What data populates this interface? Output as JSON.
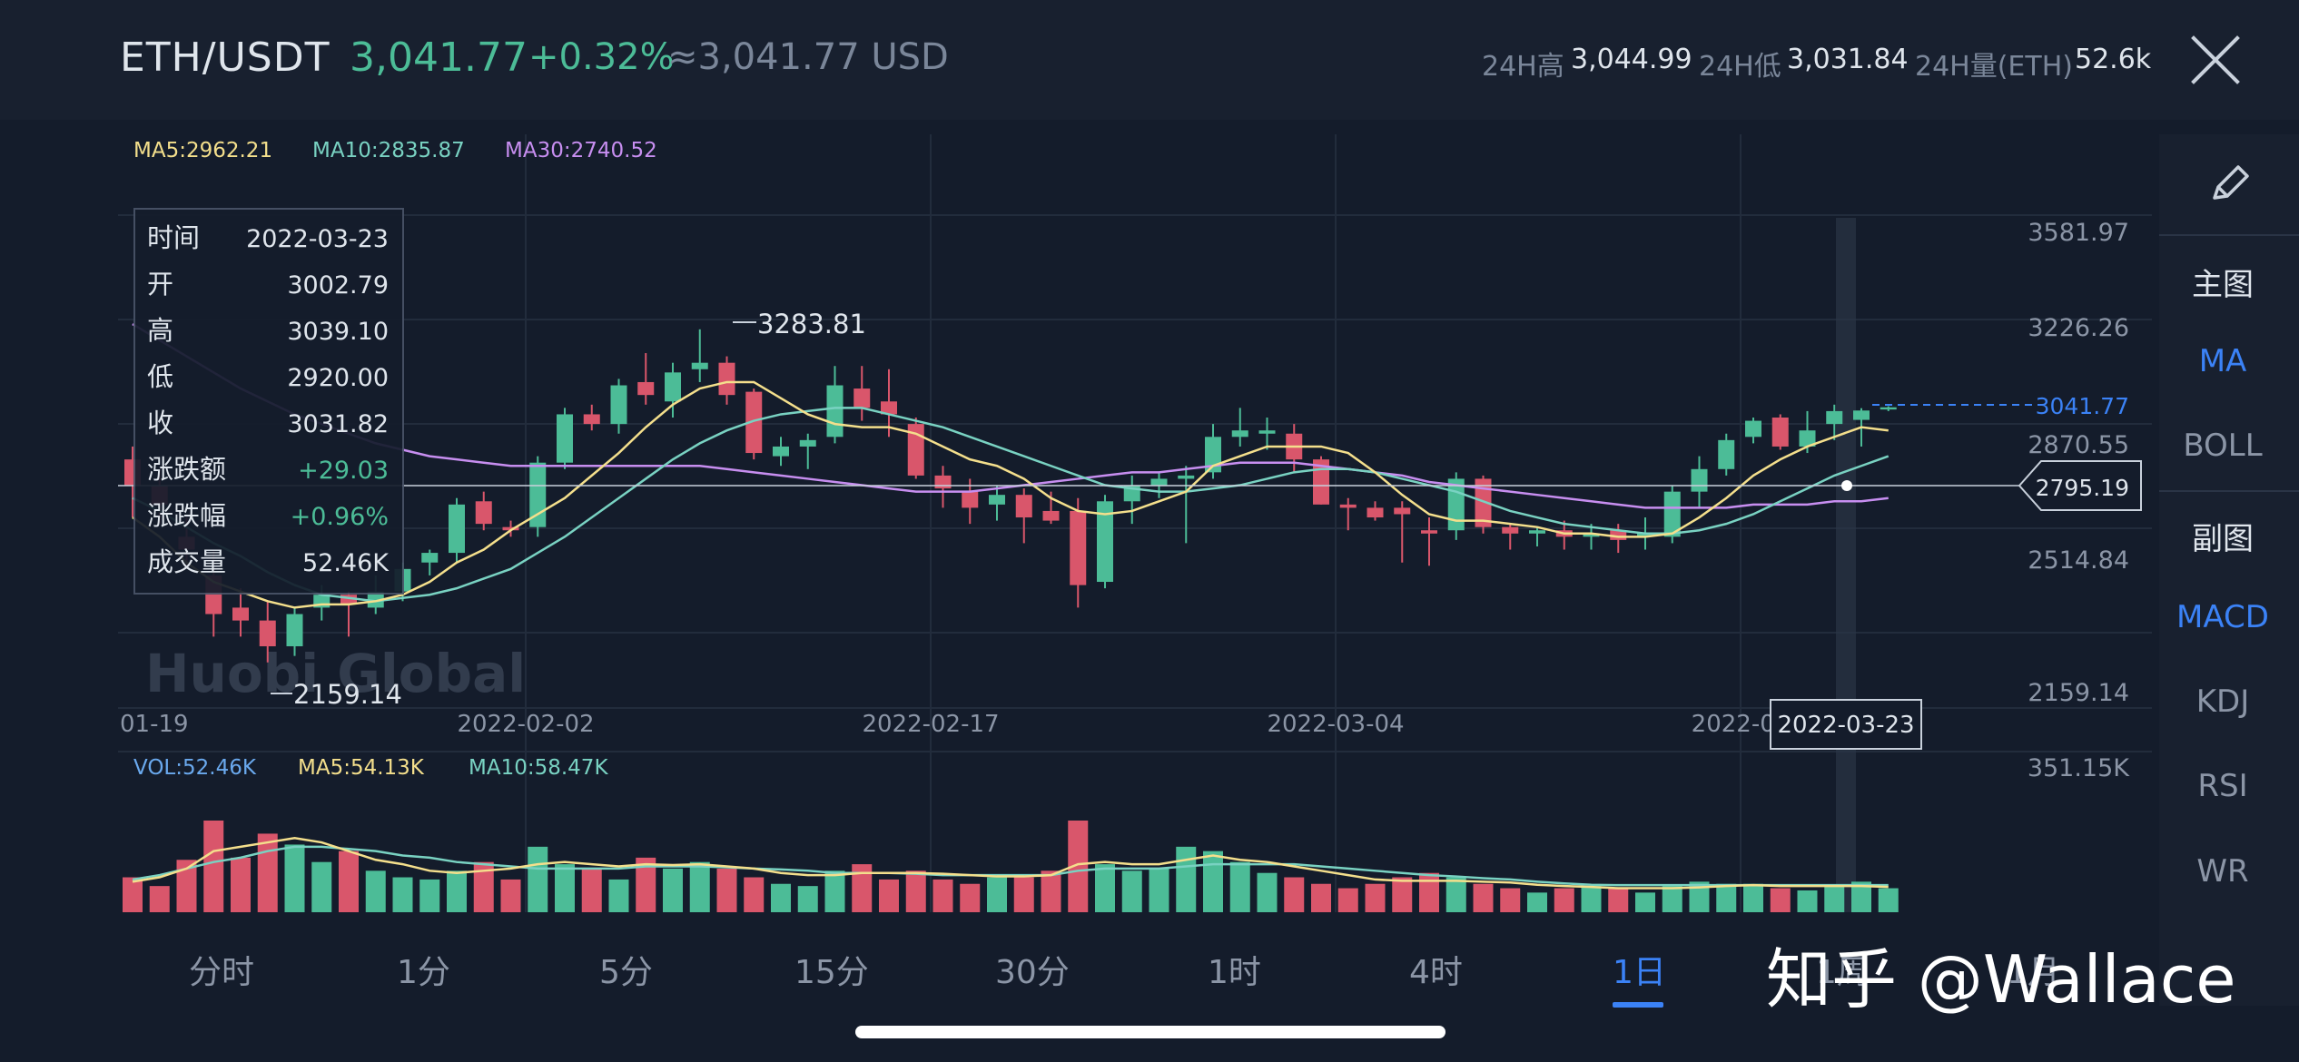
{
  "header": {
    "pair": "ETH/USDT",
    "price": "3,041.77",
    "change": "+0.32%",
    "usd": "≈3,041.77 USD",
    "high_label": "24H高",
    "high_value": "3,044.99",
    "low_label": "24H低",
    "low_value": "3,031.84",
    "vol_label": "24H量(ETH)",
    "vol_value": "52.6k"
  },
  "legend": {
    "ma5": "MA5:2962.21",
    "ma10": "MA10:2835.87",
    "ma30": "MA30:2740.52"
  },
  "y_ticks": [
    "3581.97",
    "3226.26",
    "2870.55",
    "2514.84",
    "2159.14"
  ],
  "last_price_tag": "3041.77",
  "crosshair_price": "2795.19",
  "crosshair_date": "2022-03-23",
  "max_annotation": "3283.81",
  "min_annotation": "2159.14",
  "x_ticks": [
    "01-19",
    "2022-02-02",
    "2022-02-17",
    "2022-03-04",
    "2022-03"
  ],
  "tooltip": {
    "rows": [
      {
        "label": "时间",
        "value": "2022-03-23"
      },
      {
        "label": "开",
        "value": "3002.79"
      },
      {
        "label": "高",
        "value": "3039.10"
      },
      {
        "label": "低",
        "value": "2920.00"
      },
      {
        "label": "收",
        "value": "3031.82"
      },
      {
        "label": "涨跌额",
        "value": "+29.03"
      },
      {
        "label": "涨跌幅",
        "value": "+0.96%"
      },
      {
        "label": "成交量",
        "value": "52.46K"
      }
    ]
  },
  "brand_watermark": "Huobi Global",
  "volume": {
    "vol": "VOL:52.46K",
    "ma5": "MA5:54.13K",
    "ma10": "MA10:58.47K",
    "max_tick": "351.15K"
  },
  "sidebar": {
    "main_label": "主图",
    "ma": "MA",
    "boll": "BOLL",
    "sub_label": "副图",
    "macd": "MACD",
    "kdj": "KDJ",
    "rsi": "RSI",
    "wr": "WR"
  },
  "tabs": [
    "分时",
    "1分",
    "5分",
    "15分",
    "30分",
    "1时",
    "4时",
    "1日",
    "1周",
    "1月"
  ],
  "watermark": "知乎 @Wallace",
  "colors": {
    "up": "#4cbc97",
    "down": "#d9566b",
    "ma5": "#f4df8c",
    "ma10": "#79d2c2",
    "ma30": "#c78ef0",
    "accent": "#3b82f6"
  },
  "chart_data": {
    "type": "candlestick",
    "ylim": [
      2159.14,
      3581.97
    ],
    "candles": [
      {
        "o": 2880,
        "h": 2920,
        "l": 2700,
        "c": 2800
      },
      {
        "o": 2800,
        "h": 2850,
        "l": 2680,
        "c": 2740
      },
      {
        "o": 2640,
        "h": 2700,
        "l": 2540,
        "c": 2600
      },
      {
        "o": 2520,
        "h": 2600,
        "l": 2330,
        "c": 2400
      },
      {
        "o": 2420,
        "h": 2480,
        "l": 2330,
        "c": 2380
      },
      {
        "o": 2380,
        "h": 2440,
        "l": 2250,
        "c": 2300
      },
      {
        "o": 2300,
        "h": 2420,
        "l": 2270,
        "c": 2400
      },
      {
        "o": 2420,
        "h": 2490,
        "l": 2380,
        "c": 2460
      },
      {
        "o": 2460,
        "h": 2470,
        "l": 2330,
        "c": 2430
      },
      {
        "o": 2420,
        "h": 2520,
        "l": 2400,
        "c": 2470
      },
      {
        "o": 2470,
        "h": 2560,
        "l": 2440,
        "c": 2540
      },
      {
        "o": 2560,
        "h": 2600,
        "l": 2520,
        "c": 2590
      },
      {
        "o": 2590,
        "h": 2760,
        "l": 2560,
        "c": 2740
      },
      {
        "o": 2750,
        "h": 2780,
        "l": 2660,
        "c": 2680
      },
      {
        "o": 2670,
        "h": 2690,
        "l": 2640,
        "c": 2660
      },
      {
        "o": 2670,
        "h": 2890,
        "l": 2640,
        "c": 2870
      },
      {
        "o": 2870,
        "h": 3040,
        "l": 2850,
        "c": 3020
      },
      {
        "o": 3020,
        "h": 3050,
        "l": 2970,
        "c": 2990
      },
      {
        "o": 2990,
        "h": 3130,
        "l": 2960,
        "c": 3110
      },
      {
        "o": 3120,
        "h": 3210,
        "l": 3050,
        "c": 3080
      },
      {
        "o": 3060,
        "h": 3180,
        "l": 3010,
        "c": 3150
      },
      {
        "o": 3160,
        "h": 3283.81,
        "l": 3120,
        "c": 3180
      },
      {
        "o": 3180,
        "h": 3200,
        "l": 3050,
        "c": 3080
      },
      {
        "o": 3090,
        "h": 3100,
        "l": 2880,
        "c": 2900
      },
      {
        "o": 2890,
        "h": 2950,
        "l": 2860,
        "c": 2920
      },
      {
        "o": 2920,
        "h": 2960,
        "l": 2850,
        "c": 2940
      },
      {
        "o": 2950,
        "h": 3170,
        "l": 2930,
        "c": 3110
      },
      {
        "o": 3100,
        "h": 3170,
        "l": 3000,
        "c": 3040
      },
      {
        "o": 3060,
        "h": 3160,
        "l": 2950,
        "c": 3020
      },
      {
        "o": 2990,
        "h": 3010,
        "l": 2820,
        "c": 2830
      },
      {
        "o": 2830,
        "h": 2860,
        "l": 2730,
        "c": 2790
      },
      {
        "o": 2780,
        "h": 2820,
        "l": 2680,
        "c": 2730
      },
      {
        "o": 2740,
        "h": 2800,
        "l": 2690,
        "c": 2770
      },
      {
        "o": 2770,
        "h": 2790,
        "l": 2620,
        "c": 2700
      },
      {
        "o": 2720,
        "h": 2780,
        "l": 2680,
        "c": 2690
      },
      {
        "o": 2720,
        "h": 2760,
        "l": 2420,
        "c": 2490
      },
      {
        "o": 2500,
        "h": 2770,
        "l": 2480,
        "c": 2750
      },
      {
        "o": 2750,
        "h": 2830,
        "l": 2680,
        "c": 2800
      },
      {
        "o": 2800,
        "h": 2840,
        "l": 2760,
        "c": 2820
      },
      {
        "o": 2820,
        "h": 2860,
        "l": 2620,
        "c": 2830
      },
      {
        "o": 2840,
        "h": 2990,
        "l": 2820,
        "c": 2950
      },
      {
        "o": 2950,
        "h": 3040,
        "l": 2920,
        "c": 2970
      },
      {
        "o": 2960,
        "h": 3010,
        "l": 2910,
        "c": 2970
      },
      {
        "o": 2960,
        "h": 2990,
        "l": 2840,
        "c": 2880
      },
      {
        "o": 2880,
        "h": 2890,
        "l": 2740,
        "c": 2740
      },
      {
        "o": 2740,
        "h": 2760,
        "l": 2660,
        "c": 2730
      },
      {
        "o": 2730,
        "h": 2750,
        "l": 2690,
        "c": 2700
      },
      {
        "o": 2730,
        "h": 2750,
        "l": 2560,
        "c": 2710
      },
      {
        "o": 2660,
        "h": 2700,
        "l": 2550,
        "c": 2650
      },
      {
        "o": 2660,
        "h": 2840,
        "l": 2630,
        "c": 2820
      },
      {
        "o": 2820,
        "h": 2830,
        "l": 2650,
        "c": 2670
      },
      {
        "o": 2670,
        "h": 2680,
        "l": 2600,
        "c": 2650
      },
      {
        "o": 2650,
        "h": 2670,
        "l": 2610,
        "c": 2660
      },
      {
        "o": 2660,
        "h": 2690,
        "l": 2600,
        "c": 2640
      },
      {
        "o": 2640,
        "h": 2680,
        "l": 2600,
        "c": 2650
      },
      {
        "o": 2660,
        "h": 2680,
        "l": 2590,
        "c": 2630
      },
      {
        "o": 2640,
        "h": 2700,
        "l": 2600,
        "c": 2650
      },
      {
        "o": 2640,
        "h": 2800,
        "l": 2620,
        "c": 2780
      },
      {
        "o": 2780,
        "h": 2890,
        "l": 2730,
        "c": 2850
      },
      {
        "o": 2850,
        "h": 2960,
        "l": 2830,
        "c": 2940
      },
      {
        "o": 2950,
        "h": 3010,
        "l": 2930,
        "c": 3000
      },
      {
        "o": 3010,
        "h": 3020,
        "l": 2910,
        "c": 2920
      },
      {
        "o": 2920,
        "h": 3030,
        "l": 2900,
        "c": 2970
      },
      {
        "o": 2990,
        "h": 3050,
        "l": 2940,
        "c": 3030
      },
      {
        "o": 3002.79,
        "h": 3039.1,
        "l": 2920,
        "c": 3031.82
      },
      {
        "o": 3035,
        "h": 3045,
        "l": 3030,
        "c": 3041.77
      }
    ],
    "volumes": [
      80,
      60,
      120,
      210,
      125,
      180,
      155,
      115,
      140,
      95,
      80,
      75,
      95,
      115,
      75,
      150,
      110,
      100,
      75,
      125,
      100,
      115,
      100,
      80,
      65,
      60,
      95,
      110,
      75,
      95,
      75,
      65,
      80,
      80,
      95,
      210,
      110,
      95,
      100,
      150,
      140,
      115,
      90,
      80,
      65,
      55,
      65,
      80,
      90,
      80,
      65,
      55,
      45,
      55,
      60,
      55,
      45,
      60,
      70,
      65,
      65,
      55,
      50,
      60,
      70,
      55
    ],
    "ma5": [
      2700,
      2640,
      2560,
      2500,
      2470,
      2440,
      2420,
      2430,
      2430,
      2440,
      2460,
      2500,
      2560,
      2600,
      2660,
      2710,
      2760,
      2830,
      2900,
      2980,
      3050,
      3100,
      3120,
      3120,
      3070,
      3020,
      2990,
      2980,
      2980,
      2960,
      2920,
      2880,
      2860,
      2820,
      2760,
      2720,
      2710,
      2720,
      2750,
      2780,
      2860,
      2890,
      2920,
      2920,
      2920,
      2900,
      2840,
      2770,
      2710,
      2690,
      2690,
      2680,
      2670,
      2650,
      2650,
      2640,
      2640,
      2650,
      2700,
      2760,
      2830,
      2880,
      2920,
      2950,
      2980,
      2970
    ],
    "ma10": [
      2760,
      2720,
      2670,
      2620,
      2580,
      2530,
      2490,
      2460,
      2450,
      2440,
      2450,
      2460,
      2480,
      2510,
      2540,
      2590,
      2640,
      2700,
      2760,
      2820,
      2880,
      2930,
      2970,
      3000,
      3020,
      3030,
      3040,
      3040,
      3020,
      3000,
      2980,
      2950,
      2920,
      2890,
      2860,
      2830,
      2800,
      2790,
      2780,
      2780,
      2790,
      2800,
      2820,
      2840,
      2850,
      2850,
      2840,
      2820,
      2800,
      2780,
      2750,
      2720,
      2700,
      2680,
      2670,
      2660,
      2650,
      2650,
      2660,
      2680,
      2710,
      2750,
      2790,
      2830,
      2860,
      2890
    ],
    "ma30": [
      3300,
      3250,
      3200,
      3150,
      3100,
      3060,
      3020,
      2990,
      2960,
      2930,
      2910,
      2890,
      2880,
      2870,
      2860,
      2860,
      2860,
      2860,
      2860,
      2860,
      2860,
      2860,
      2850,
      2840,
      2830,
      2820,
      2810,
      2800,
      2790,
      2780,
      2780,
      2780,
      2790,
      2800,
      2810,
      2820,
      2830,
      2840,
      2840,
      2850,
      2860,
      2870,
      2870,
      2870,
      2860,
      2850,
      2840,
      2830,
      2810,
      2800,
      2790,
      2780,
      2770,
      2760,
      2750,
      2740,
      2730,
      2730,
      2730,
      2730,
      2740,
      2740,
      2740,
      2750,
      2750,
      2760
    ],
    "vol_ma5": [
      70,
      80,
      100,
      140,
      150,
      160,
      170,
      160,
      140,
      120,
      110,
      95,
      90,
      95,
      100,
      110,
      115,
      110,
      105,
      110,
      108,
      110,
      105,
      100,
      90,
      85,
      85,
      90,
      90,
      90,
      88,
      85,
      82,
      82,
      85,
      110,
      115,
      110,
      110,
      120,
      130,
      120,
      115,
      105,
      95,
      85,
      75,
      72,
      72,
      72,
      70,
      68,
      63,
      60,
      58,
      55,
      55,
      55,
      57,
      60,
      62,
      60,
      60,
      60,
      60,
      58
    ],
    "vol_ma10": [
      75,
      85,
      100,
      115,
      125,
      140,
      150,
      150,
      145,
      140,
      130,
      125,
      115,
      110,
      105,
      100,
      100,
      100,
      100,
      105,
      105,
      105,
      103,
      100,
      98,
      95,
      90,
      90,
      90,
      88,
      85,
      85,
      85,
      85,
      85,
      95,
      100,
      100,
      100,
      105,
      110,
      110,
      110,
      110,
      105,
      100,
      95,
      90,
      85,
      82,
      78,
      75,
      70,
      66,
      63,
      62,
      62,
      62,
      62,
      62,
      62,
      62,
      62,
      62,
      62,
      62
    ]
  }
}
